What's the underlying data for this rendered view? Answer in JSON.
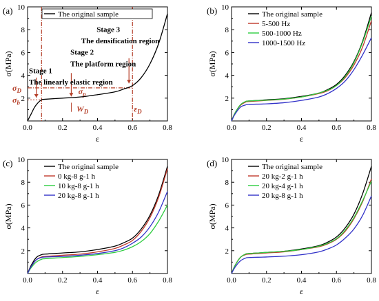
{
  "chart_data": [
    {
      "panel": "(a)",
      "type": "line",
      "xlabel": "ε",
      "ylabel": "σ(MPa)",
      "xlim": [
        0,
        0.8
      ],
      "ylim": [
        0,
        10
      ],
      "xticks": [
        "0.0",
        "0.2",
        "0.4",
        "0.6",
        "0.8"
      ],
      "yticks": [
        "2",
        "4",
        "6",
        "8",
        "10"
      ],
      "legend_position": "top-left",
      "series": [
        {
          "name": "The original sample",
          "color": "#000000",
          "x": [
            0,
            0.02,
            0.04,
            0.06,
            0.08,
            0.1,
            0.2,
            0.3,
            0.4,
            0.5,
            0.55,
            0.6,
            0.65,
            0.7,
            0.75,
            0.8
          ],
          "y": [
            0,
            0.6,
            1.2,
            1.6,
            1.85,
            1.9,
            2.0,
            2.1,
            2.3,
            2.55,
            2.8,
            3.1,
            3.8,
            5.0,
            6.8,
            9.4
          ]
        }
      ],
      "annotations": {
        "stage1": "Stage 1",
        "region1": "The linearly elastic region",
        "stage2": "Stage 2",
        "region2": "The platform region",
        "stage3": "Stage 3",
        "region3": "The densification region",
        "sigma_D": "σD",
        "sigma_b": "σb",
        "sigma_p": "σp",
        "W_D": "WD",
        "eps_D": "εD",
        "eps_b_value": 0.08,
        "eps_D_value": 0.6,
        "sigma_D_value": 2.9,
        "sigma_b_value": 1.85,
        "annotation_color": "#b5402a"
      }
    },
    {
      "panel": "(b)",
      "type": "line",
      "xlabel": "ε",
      "ylabel": "σ(MPa)",
      "xlim": [
        0,
        0.8
      ],
      "ylim": [
        0,
        10
      ],
      "xticks": [
        "0.0",
        "0.2",
        "0.4",
        "0.6",
        "0.8"
      ],
      "yticks": [
        "2",
        "4",
        "6",
        "8",
        "10"
      ],
      "legend_position": "top-left",
      "series": [
        {
          "name": "The original sample",
          "color": "#000000",
          "x": [
            0,
            0.02,
            0.05,
            0.08,
            0.1,
            0.2,
            0.3,
            0.4,
            0.5,
            0.55,
            0.6,
            0.65,
            0.7,
            0.75,
            0.8
          ],
          "y": [
            0,
            0.7,
            1.4,
            1.7,
            1.75,
            1.85,
            1.95,
            2.15,
            2.45,
            2.75,
            3.2,
            4.0,
            5.2,
            7.0,
            9.5
          ]
        },
        {
          "name": "5-500 Hz",
          "color": "#c0392b",
          "x": [
            0,
            0.02,
            0.05,
            0.08,
            0.1,
            0.2,
            0.3,
            0.4,
            0.5,
            0.55,
            0.6,
            0.65,
            0.7,
            0.75,
            0.8
          ],
          "y": [
            0,
            0.7,
            1.35,
            1.65,
            1.7,
            1.8,
            1.9,
            2.1,
            2.4,
            2.65,
            3.1,
            3.8,
            4.9,
            6.5,
            8.8
          ]
        },
        {
          "name": "500-1000 Hz",
          "color": "#2ecc40",
          "x": [
            0,
            0.02,
            0.05,
            0.08,
            0.1,
            0.2,
            0.3,
            0.4,
            0.5,
            0.55,
            0.6,
            0.65,
            0.7,
            0.75,
            0.8
          ],
          "y": [
            0,
            0.7,
            1.4,
            1.7,
            1.75,
            1.82,
            1.92,
            2.1,
            2.45,
            2.7,
            3.1,
            3.9,
            5.1,
            6.9,
            9.2
          ]
        },
        {
          "name": "1000-1500 Hz",
          "color": "#3030c8",
          "x": [
            0,
            0.02,
            0.05,
            0.08,
            0.1,
            0.2,
            0.3,
            0.4,
            0.5,
            0.55,
            0.6,
            0.65,
            0.7,
            0.75,
            0.8
          ],
          "y": [
            0,
            0.6,
            1.2,
            1.4,
            1.45,
            1.5,
            1.6,
            1.8,
            2.1,
            2.4,
            2.85,
            3.5,
            4.5,
            5.8,
            7.3
          ]
        }
      ]
    },
    {
      "panel": "(c)",
      "type": "line",
      "xlabel": "ε",
      "ylabel": "σ(MPa)",
      "xlim": [
        0,
        0.8
      ],
      "ylim": [
        0,
        10
      ],
      "xticks": [
        "0.0",
        "0.2",
        "0.4",
        "0.6",
        "0.8"
      ],
      "yticks": [
        "2",
        "4",
        "6",
        "8",
        "10"
      ],
      "legend_position": "top-left",
      "series": [
        {
          "name": "The original sample",
          "color": "#000000",
          "x": [
            0,
            0.02,
            0.05,
            0.08,
            0.1,
            0.2,
            0.3,
            0.4,
            0.5,
            0.55,
            0.6,
            0.65,
            0.7,
            0.75,
            0.8
          ],
          "y": [
            0,
            0.7,
            1.4,
            1.65,
            1.7,
            1.8,
            1.9,
            2.1,
            2.4,
            2.7,
            3.1,
            3.9,
            5.1,
            6.9,
            9.4
          ]
        },
        {
          "name": "0 kg-8 g-1 h",
          "color": "#c0392b",
          "x": [
            0,
            0.02,
            0.05,
            0.08,
            0.1,
            0.2,
            0.3,
            0.4,
            0.5,
            0.55,
            0.6,
            0.65,
            0.7,
            0.75,
            0.8
          ],
          "y": [
            0,
            0.6,
            1.2,
            1.45,
            1.5,
            1.6,
            1.7,
            1.9,
            2.2,
            2.5,
            2.9,
            3.7,
            4.9,
            6.7,
            9.2
          ]
        },
        {
          "name": "10 kg-8 g-1 h",
          "color": "#2ecc40",
          "x": [
            0,
            0.02,
            0.05,
            0.08,
            0.1,
            0.2,
            0.3,
            0.4,
            0.5,
            0.55,
            0.6,
            0.65,
            0.7,
            0.75,
            0.8
          ],
          "y": [
            0,
            0.5,
            1.0,
            1.25,
            1.3,
            1.4,
            1.5,
            1.65,
            1.85,
            2.05,
            2.35,
            2.8,
            3.5,
            4.6,
            6.0
          ]
        },
        {
          "name": "20 kg-8 g-1 h",
          "color": "#3030c8",
          "x": [
            0,
            0.02,
            0.05,
            0.08,
            0.1,
            0.2,
            0.3,
            0.4,
            0.5,
            0.55,
            0.6,
            0.65,
            0.7,
            0.75,
            0.8
          ],
          "y": [
            0,
            0.6,
            1.2,
            1.4,
            1.45,
            1.5,
            1.6,
            1.75,
            2.0,
            2.25,
            2.65,
            3.2,
            4.1,
            5.4,
            7.2
          ]
        }
      ]
    },
    {
      "panel": "(d)",
      "type": "line",
      "xlabel": "ε",
      "ylabel": "σ(MPa)",
      "xlim": [
        0,
        0.8
      ],
      "ylim": [
        0,
        10
      ],
      "xticks": [
        "0.0",
        "0.2",
        "0.4",
        "0.6",
        "0.8"
      ],
      "yticks": [
        "2",
        "4",
        "6",
        "8",
        "10"
      ],
      "legend_position": "top-left",
      "series": [
        {
          "name": "The original sample",
          "color": "#000000",
          "x": [
            0,
            0.02,
            0.05,
            0.08,
            0.1,
            0.2,
            0.3,
            0.4,
            0.5,
            0.55,
            0.6,
            0.65,
            0.7,
            0.75,
            0.8
          ],
          "y": [
            0,
            0.7,
            1.4,
            1.7,
            1.75,
            1.85,
            1.95,
            2.15,
            2.45,
            2.75,
            3.2,
            4.0,
            5.2,
            7.0,
            9.4
          ]
        },
        {
          "name": "20 kg-2 g-1 h",
          "color": "#c0392b",
          "x": [
            0,
            0.02,
            0.05,
            0.08,
            0.1,
            0.2,
            0.3,
            0.4,
            0.5,
            0.55,
            0.6,
            0.65,
            0.7,
            0.75,
            0.8
          ],
          "y": [
            0,
            0.7,
            1.4,
            1.65,
            1.7,
            1.8,
            1.9,
            2.1,
            2.35,
            2.6,
            3.0,
            3.7,
            4.8,
            6.3,
            8.3
          ]
        },
        {
          "name": "20 kg-4 g-1 h",
          "color": "#2ecc40",
          "x": [
            0,
            0.02,
            0.05,
            0.08,
            0.1,
            0.2,
            0.3,
            0.4,
            0.5,
            0.55,
            0.6,
            0.65,
            0.7,
            0.75,
            0.8
          ],
          "y": [
            0,
            0.7,
            1.4,
            1.7,
            1.75,
            1.85,
            1.95,
            2.1,
            2.4,
            2.65,
            3.05,
            3.8,
            4.9,
            6.4,
            8.1
          ]
        },
        {
          "name": "20 kg-8 g-1 h",
          "color": "#3030c8",
          "x": [
            0,
            0.02,
            0.05,
            0.08,
            0.1,
            0.2,
            0.3,
            0.4,
            0.5,
            0.55,
            0.6,
            0.65,
            0.7,
            0.75,
            0.8
          ],
          "y": [
            0,
            0.55,
            1.1,
            1.35,
            1.4,
            1.45,
            1.52,
            1.65,
            1.9,
            2.15,
            2.5,
            3.1,
            3.9,
            5.1,
            6.8
          ]
        }
      ]
    }
  ]
}
